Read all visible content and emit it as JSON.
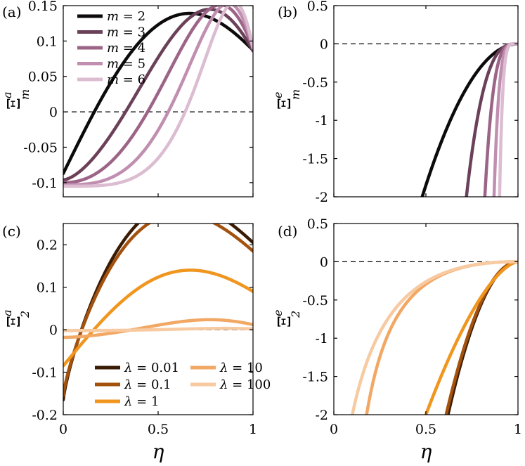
{
  "figure": {
    "xlabel": "η",
    "math": {
      "m": "m",
      "lambda": "λ",
      "eq": " = "
    }
  },
  "chart_data": [
    {
      "panel": "(a)",
      "type": "line",
      "ylabel": {
        "symbol": "Ξ",
        "sub": "m",
        "sup": "a"
      },
      "xlim": [
        0,
        1
      ],
      "ylim": [
        -0.12,
        0.15
      ],
      "xticks": [
        0,
        0.5,
        1
      ],
      "xticklabels": [
        "",
        "",
        ""
      ],
      "yticks": [
        -0.1,
        -0.05,
        0,
        0.05,
        0.1,
        0.15
      ],
      "yticklabels": [
        "-0.1",
        "-0.05",
        "0",
        "0.05",
        "0.1",
        "0.15"
      ],
      "zero_line": 0,
      "legend": {
        "position": "top-left",
        "columns": 1
      },
      "series": [
        {
          "name": "m = 2",
          "label_var": "m",
          "label_val": "2",
          "color": "#0d0a0c",
          "mode": "sin",
          "A": -0.087,
          "B": 0.087,
          "p": 1.0
        },
        {
          "name": "m = 3",
          "label_var": "m",
          "label_val": "3",
          "color": "#6b4159",
          "mode": "sin",
          "A": -0.096,
          "B": 0.086,
          "p": 1.6
        },
        {
          "name": "m = 4",
          "label_var": "m",
          "label_val": "4",
          "color": "#9c6487",
          "mode": "sin",
          "A": -0.1,
          "B": 0.09,
          "p": 2.2
        },
        {
          "name": "m = 5",
          "label_var": "m",
          "label_val": "5",
          "color": "#c08fb0",
          "mode": "sin",
          "A": -0.103,
          "B": 0.09,
          "p": 3.0
        },
        {
          "name": "m = 6",
          "label_var": "m",
          "label_val": "6",
          "color": "#dbbcd1",
          "mode": "sin",
          "A": -0.105,
          "B": 0.09,
          "p": 4.0
        }
      ]
    },
    {
      "panel": "(b)",
      "type": "line",
      "ylabel": {
        "symbol": "Ξ",
        "sub": "m",
        "sup": "e"
      },
      "xlim": [
        0,
        1
      ],
      "ylim": [
        -2,
        0.5
      ],
      "xticks": [
        0,
        0.5,
        1
      ],
      "xticklabels": [
        "",
        "",
        ""
      ],
      "yticks": [
        -2,
        -1.5,
        -1,
        -0.5,
        0,
        0.5
      ],
      "yticklabels": [
        "-2",
        "-1.5",
        "-1",
        "-0.5",
        "0",
        "0.5"
      ],
      "zero_line": 0,
      "legend": null,
      "series": [
        {
          "name": "m = 2",
          "color": "#0d0a0c",
          "mode": "pow",
          "K": 2.0,
          "x0": 0.48,
          "p": 2.0
        },
        {
          "name": "m = 3",
          "color": "#6b4159",
          "mode": "pow",
          "K": 2.0,
          "x0": 0.72,
          "p": 3.0
        },
        {
          "name": "m = 4",
          "color": "#9c6487",
          "mode": "pow",
          "K": 2.0,
          "x0": 0.82,
          "p": 4.0
        },
        {
          "name": "m = 5",
          "color": "#c08fb0",
          "mode": "pow",
          "K": 2.0,
          "x0": 0.87,
          "p": 5.0
        },
        {
          "name": "m = 6",
          "color": "#dbbcd1",
          "mode": "pow",
          "K": 2.0,
          "x0": 0.9,
          "p": 6.0
        }
      ]
    },
    {
      "panel": "(c)",
      "type": "line",
      "ylabel": {
        "symbol": "Ξ",
        "sub": "2",
        "sup": "a"
      },
      "xlim": [
        0,
        1
      ],
      "ylim": [
        -0.2,
        0.25
      ],
      "xticks": [
        0,
        0.5,
        1
      ],
      "xticklabels": [
        "0",
        "0.5",
        "1"
      ],
      "yticks": [
        -0.2,
        -0.1,
        0,
        0.1,
        0.2
      ],
      "yticklabels": [
        "-0.2",
        "-0.1",
        "0",
        "0.1",
        "0.2"
      ],
      "zero_line": 0,
      "legend": {
        "position": "bottom-left",
        "columns": 2
      },
      "series": [
        {
          "name": "λ = 0.01",
          "label_var": "λ",
          "label_val": "0.01",
          "color": "#3a1c05",
          "mode": "sin",
          "A": -0.165,
          "B": 0.205,
          "p": 0.8
        },
        {
          "name": "λ = 0.1",
          "label_var": "λ",
          "label_val": "0.1",
          "color": "#a3520e",
          "mode": "sin",
          "A": -0.155,
          "B": 0.185,
          "p": 0.8
        },
        {
          "name": "λ = 1",
          "label_var": "λ",
          "label_val": "1",
          "color": "#f0961e",
          "mode": "sin",
          "A": -0.085,
          "B": 0.09,
          "p": 1.0
        },
        {
          "name": "λ = 10",
          "label_var": "λ",
          "label_val": "10",
          "color": "#f2a865",
          "mode": "sin",
          "A": -0.018,
          "B": 0.012,
          "p": 1.7
        },
        {
          "name": "λ = 100",
          "label_var": "λ",
          "label_val": "100",
          "color": "#f7caa2",
          "mode": "sin",
          "A": -0.002,
          "B": 0.002,
          "p": 2.5
        }
      ]
    },
    {
      "panel": "(d)",
      "type": "line",
      "ylabel": {
        "symbol": "Ξ",
        "sub": "2",
        "sup": "e"
      },
      "xlim": [
        0,
        1
      ],
      "ylim": [
        -2,
        0.5
      ],
      "xticks": [
        0,
        0.5,
        1
      ],
      "xticklabels": [
        "0",
        "0.5",
        "1"
      ],
      "yticks": [
        -2,
        -1.5,
        -1,
        -0.5,
        0,
        0.5
      ],
      "yticklabels": [
        "-2",
        "-1.5",
        "-1",
        "-0.5",
        "0",
        "0.5"
      ],
      "zero_line": 0,
      "legend": null,
      "series": [
        {
          "name": "λ = 0.01",
          "color": "#3a1c05",
          "mode": "pow",
          "K": 2.0,
          "x0": 0.62,
          "p": 2.0
        },
        {
          "name": "λ = 0.1",
          "color": "#a3520e",
          "mode": "pow",
          "K": 2.0,
          "x0": 0.61,
          "p": 2.0
        },
        {
          "name": "λ = 1",
          "color": "#f0961e",
          "mode": "pow",
          "K": 2.0,
          "x0": 0.5,
          "p": 1.6
        },
        {
          "name": "λ = 10",
          "color": "#f2a865",
          "mode": "exp",
          "A": 0.7,
          "a": 1.5,
          "n": 0.2,
          "m": 2.3
        },
        {
          "name": "λ = 100",
          "color": "#f7caa2",
          "mode": "exp",
          "A": 0.7,
          "a": 1.5,
          "n": 0.06,
          "m": 2.3
        }
      ]
    }
  ]
}
